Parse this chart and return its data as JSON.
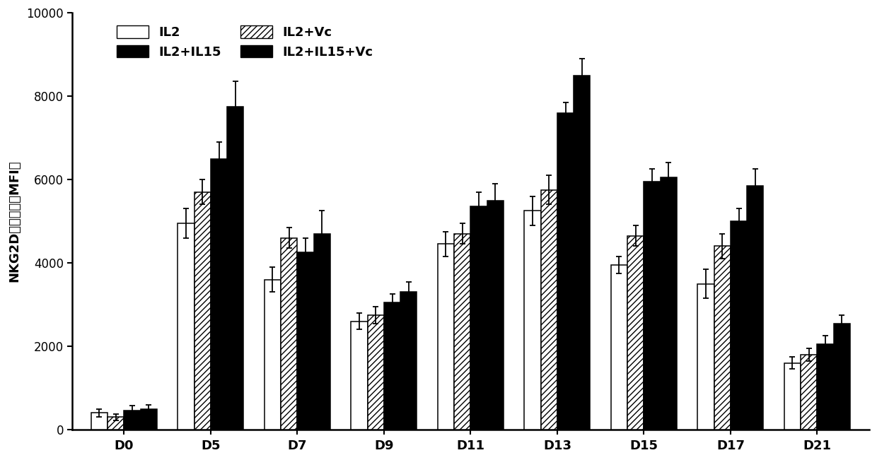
{
  "categories": [
    "D0",
    "D5",
    "D7",
    "D9",
    "D11",
    "D13",
    "D15",
    "D17",
    "D21"
  ],
  "IL2": [
    400,
    4950,
    3600,
    2600,
    4450,
    5250,
    3950,
    3500,
    1600
  ],
  "IL2_Vc": [
    300,
    5700,
    4600,
    2750,
    4700,
    5750,
    4650,
    4400,
    1800
  ],
  "IL2_IL15": [
    450,
    6500,
    4250,
    3050,
    5350,
    7600,
    5950,
    5000,
    2050
  ],
  "IL2_IL15_Vc": [
    500,
    7750,
    4700,
    3300,
    5500,
    8500,
    6050,
    5850,
    2550
  ],
  "IL2_err": [
    100,
    350,
    300,
    200,
    300,
    350,
    200,
    350,
    150
  ],
  "IL2_Vc_err": [
    80,
    300,
    250,
    200,
    250,
    350,
    250,
    300,
    150
  ],
  "IL2_IL15_err": [
    120,
    400,
    350,
    200,
    350,
    250,
    300,
    300,
    200
  ],
  "IL2_IL15_Vc_err": [
    100,
    600,
    550,
    250,
    400,
    400,
    350,
    400,
    200
  ],
  "ylabel": "NKG2D表达水平（MFI）",
  "ylim": [
    0,
    10000
  ],
  "yticks": [
    0,
    2000,
    4000,
    6000,
    8000,
    10000
  ],
  "legend_labels": [
    "IL2",
    "IL2+Vc",
    "IL2+IL15",
    "IL2+IL15+Vc"
  ],
  "bar_width": 0.19,
  "figsize": [
    12.4,
    6.51
  ],
  "dpi": 100
}
